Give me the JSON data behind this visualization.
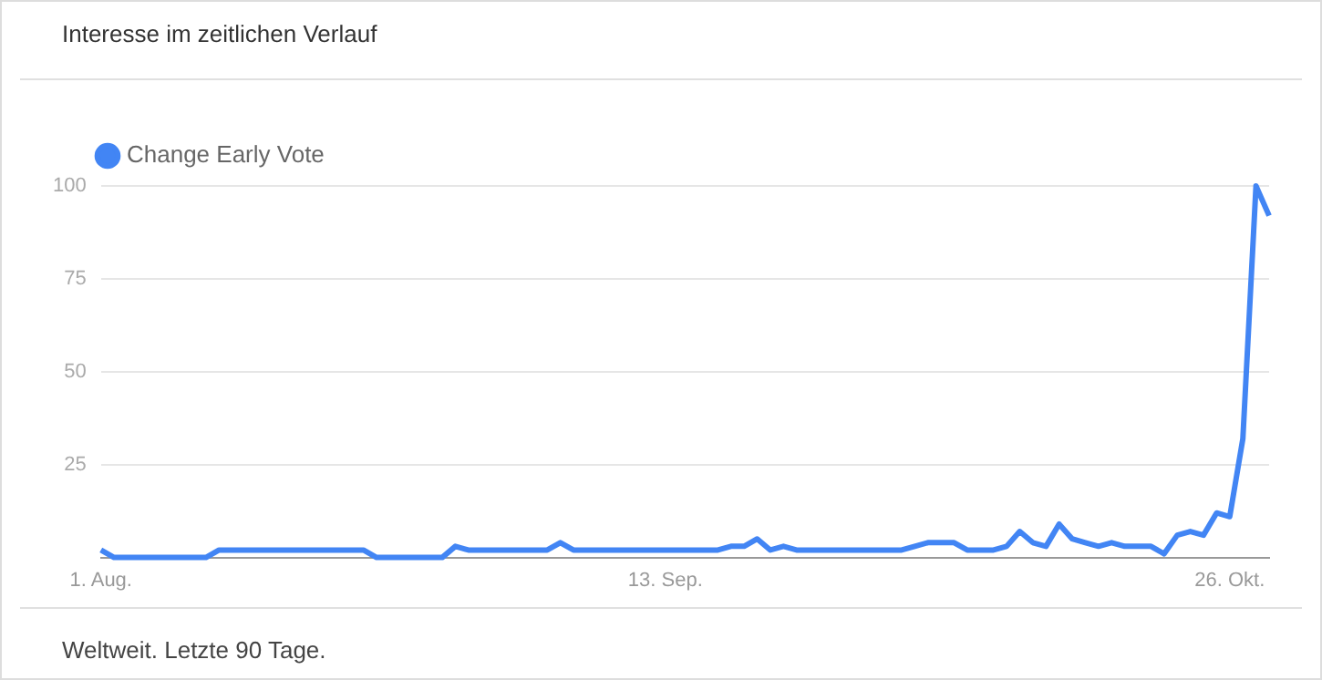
{
  "chart_data": {
    "type": "line",
    "title": "Interesse im zeitlichen Verlauf",
    "annotations": [
      "Weltweit. Letzte 90 Tage."
    ],
    "categories": [
      "1. Aug.",
      null,
      null,
      null,
      null,
      null,
      null,
      null,
      null,
      null,
      null,
      null,
      null,
      null,
      null,
      null,
      null,
      null,
      null,
      null,
      null,
      null,
      null,
      null,
      null,
      null,
      null,
      null,
      null,
      null,
      null,
      null,
      null,
      null,
      null,
      null,
      null,
      null,
      null,
      null,
      null,
      null,
      null,
      "13. Sep.",
      null,
      null,
      null,
      null,
      null,
      null,
      null,
      null,
      null,
      null,
      null,
      null,
      null,
      null,
      null,
      null,
      null,
      null,
      null,
      null,
      null,
      null,
      null,
      null,
      null,
      null,
      null,
      null,
      null,
      null,
      null,
      null,
      null,
      null,
      null,
      null,
      null,
      null,
      null,
      null,
      null,
      null,
      "26. Okt.",
      null,
      null,
      null
    ],
    "series": [
      {
        "name": "Change Early Vote",
        "color": "#4285f4",
        "values": [
          2,
          0,
          0,
          0,
          0,
          0,
          0,
          0,
          0,
          2,
          2,
          2,
          2,
          2,
          2,
          2,
          2,
          2,
          2,
          2,
          2,
          0,
          0,
          0,
          0,
          0,
          0,
          3,
          2,
          2,
          2,
          2,
          2,
          2,
          2,
          4,
          2,
          2,
          2,
          2,
          2,
          2,
          2,
          2,
          2,
          2,
          2,
          2,
          3,
          3,
          5,
          2,
          3,
          2,
          2,
          2,
          2,
          2,
          2,
          2,
          2,
          2,
          3,
          4,
          4,
          4,
          2,
          2,
          2,
          3,
          7,
          4,
          3,
          9,
          5,
          4,
          3,
          4,
          3,
          3,
          3,
          1,
          6,
          7,
          6,
          12,
          11,
          32,
          100,
          92
        ]
      }
    ],
    "ylim": [
      0,
      100
    ],
    "yticks": [
      25,
      50,
      75,
      100
    ],
    "grid": "y",
    "legend": "top left",
    "marker": "none",
    "line_style": "solid"
  }
}
